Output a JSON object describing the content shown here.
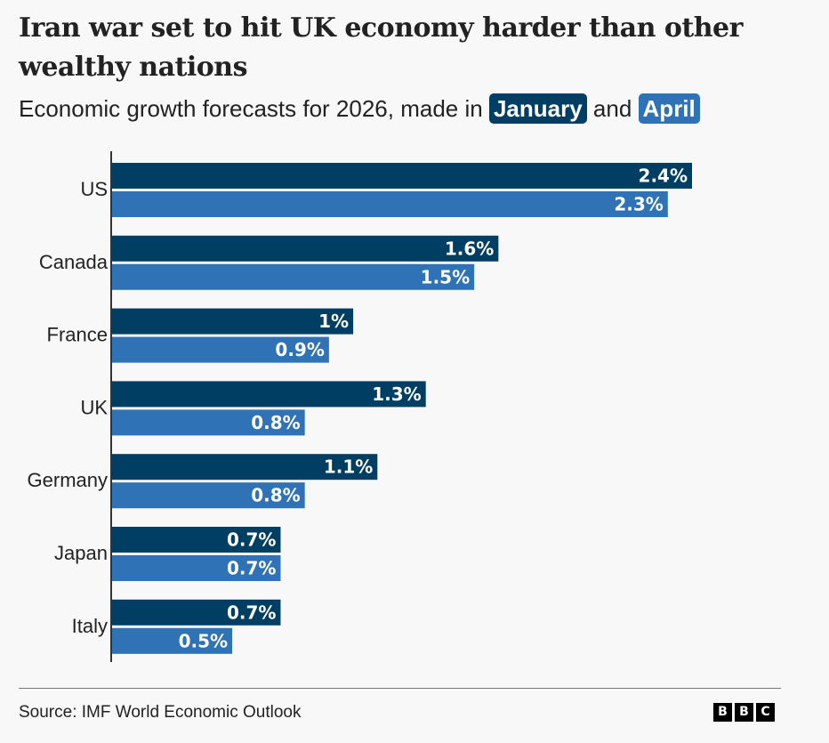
{
  "title": "Iran war set to hit UK economy harder than other wealthy nations",
  "subtitle": {
    "prefix": "Economic growth forecasts for 2026, made in",
    "series1": "January",
    "joiner": "and",
    "series2": "April"
  },
  "colors": {
    "january": "#003f63",
    "april": "#2f73b6"
  },
  "chart_data": {
    "type": "bar",
    "orientation": "horizontal",
    "title": "Iran war set to hit UK economy harder than other wealthy nations",
    "subtitle": "Economic growth forecasts for 2026, made in January and April",
    "categories": [
      "US",
      "Canada",
      "France",
      "UK",
      "Germany",
      "Japan",
      "Italy"
    ],
    "series": [
      {
        "name": "January",
        "color": "#003f63",
        "values": [
          2.4,
          1.6,
          1.0,
          1.3,
          1.1,
          0.7,
          0.7
        ],
        "labels": [
          "2.4%",
          "1.6%",
          "1%",
          "1.3%",
          "1.1%",
          "0.7%",
          "0.7%"
        ]
      },
      {
        "name": "April",
        "color": "#2f73b6",
        "values": [
          2.3,
          1.5,
          0.9,
          0.8,
          0.8,
          0.7,
          0.5
        ],
        "labels": [
          "2.3%",
          "1.5%",
          "0.9%",
          "0.8%",
          "0.8%",
          "0.7%",
          "0.5%"
        ]
      }
    ],
    "xlabel": "",
    "ylabel": "",
    "xlim": [
      0,
      2.4
    ],
    "grid": false,
    "legend": "in-subtitle"
  },
  "footer": {
    "source": "Source: IMF World Economic Outlook",
    "logo_letters": [
      "B",
      "B",
      "C"
    ]
  }
}
